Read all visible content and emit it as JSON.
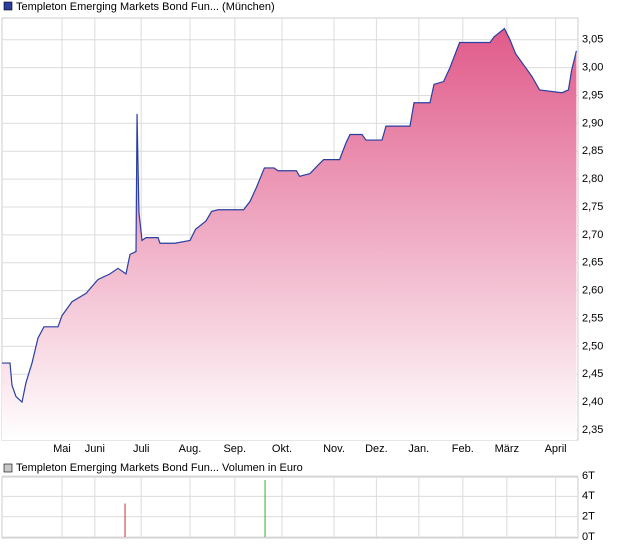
{
  "chart_data": [
    {
      "type": "area",
      "title": "Templeton Emerging Markets Bond Fun... (München)",
      "color": "#2a3fa0",
      "fill_top": "#e05a8a",
      "fill_bottom": "#ffffff",
      "grid": true,
      "x": [
        0,
        5,
        6.25,
        8.75,
        12.5,
        15,
        18.75,
        22.5,
        26.25,
        35,
        37.5,
        43.75,
        52.5,
        60,
        67.5,
        72.5,
        77.5,
        80,
        83.75,
        84.4,
        85.6,
        87.5,
        90,
        97.5,
        98.75,
        108,
        117.5,
        121,
        127.5,
        131,
        135,
        151,
        155,
        159,
        164,
        170,
        172.5,
        184,
        186,
        192.5,
        197.5,
        201,
        211,
        215,
        217.5,
        225,
        227.5,
        237.5,
        240,
        245,
        255,
        257.5,
        267.5,
        270,
        276,
        280,
        284,
        286,
        305,
        307.5,
        314,
        317.5,
        321,
        326,
        331,
        336,
        350,
        354,
        356,
        359
      ],
      "values": [
        2.47,
        2.47,
        2.43,
        2.41,
        2.4,
        2.435,
        2.47,
        2.515,
        2.535,
        2.535,
        2.555,
        2.58,
        2.595,
        2.62,
        2.63,
        2.64,
        2.63,
        2.665,
        2.67,
        2.917,
        2.74,
        2.69,
        2.695,
        2.695,
        2.685,
        2.685,
        2.69,
        2.71,
        2.725,
        2.742,
        2.745,
        2.745,
        2.76,
        2.785,
        2.82,
        2.82,
        2.815,
        2.815,
        2.805,
        2.81,
        2.825,
        2.835,
        2.835,
        2.865,
        2.88,
        2.88,
        2.87,
        2.87,
        2.895,
        2.895,
        2.895,
        2.937,
        2.937,
        2.97,
        2.975,
        3.0,
        3.03,
        3.045,
        3.045,
        3.055,
        3.07,
        3.05,
        3.025,
        3.005,
        2.985,
        2.96,
        2.955,
        2.96,
        2.995,
        3.03
      ],
      "xlim": [
        0,
        360
      ],
      "xticks": [
        {
          "value": 37.5,
          "label": "Mai"
        },
        {
          "value": 58,
          "label": "Juni"
        },
        {
          "value": 87,
          "label": "Juli"
        },
        {
          "value": 117.5,
          "label": "Aug."
        },
        {
          "value": 145.5,
          "label": "Sep."
        },
        {
          "value": 175,
          "label": "Okt."
        },
        {
          "value": 207.5,
          "label": "Nov."
        },
        {
          "value": 234,
          "label": "Dez."
        },
        {
          "value": 260.5,
          "label": "Jan."
        },
        {
          "value": 288,
          "label": "Feb."
        },
        {
          "value": 315.5,
          "label": "März"
        },
        {
          "value": 346,
          "label": "April"
        }
      ],
      "ylim": [
        2.332,
        3.089
      ],
      "yticks": [
        {
          "value": 2.35,
          "label": "2,35"
        },
        {
          "value": 2.4,
          "label": "2,40"
        },
        {
          "value": 2.45,
          "label": "2,45"
        },
        {
          "value": 2.5,
          "label": "2,50"
        },
        {
          "value": 2.55,
          "label": "2,55"
        },
        {
          "value": 2.6,
          "label": "2,60"
        },
        {
          "value": 2.65,
          "label": "2,65"
        },
        {
          "value": 2.7,
          "label": "2,70"
        },
        {
          "value": 2.75,
          "label": "2,75"
        },
        {
          "value": 2.8,
          "label": "2,80"
        },
        {
          "value": 2.85,
          "label": "2,85"
        },
        {
          "value": 2.9,
          "label": "2,90"
        },
        {
          "value": 2.95,
          "label": "2,95"
        },
        {
          "value": 3.0,
          "label": "3,00"
        },
        {
          "value": 3.05,
          "label": "3,05"
        }
      ]
    },
    {
      "type": "bar",
      "title": "Templeton Emerging Markets Bond Fun... Volumen in Euro",
      "legend_color": "#c8c8c8",
      "grid": true,
      "x": [
        76.9,
        164.4
      ],
      "values": [
        3300,
        5600
      ],
      "colors": [
        "#d03030",
        "#30b030"
      ],
      "xlim": [
        0,
        360
      ],
      "ylim": [
        0,
        6000
      ],
      "yticks": [
        {
          "value": 0,
          "label": "0T"
        },
        {
          "value": 2000,
          "label": "2T"
        },
        {
          "value": 4000,
          "label": "4T"
        },
        {
          "value": 6000,
          "label": "6T"
        }
      ]
    }
  ]
}
